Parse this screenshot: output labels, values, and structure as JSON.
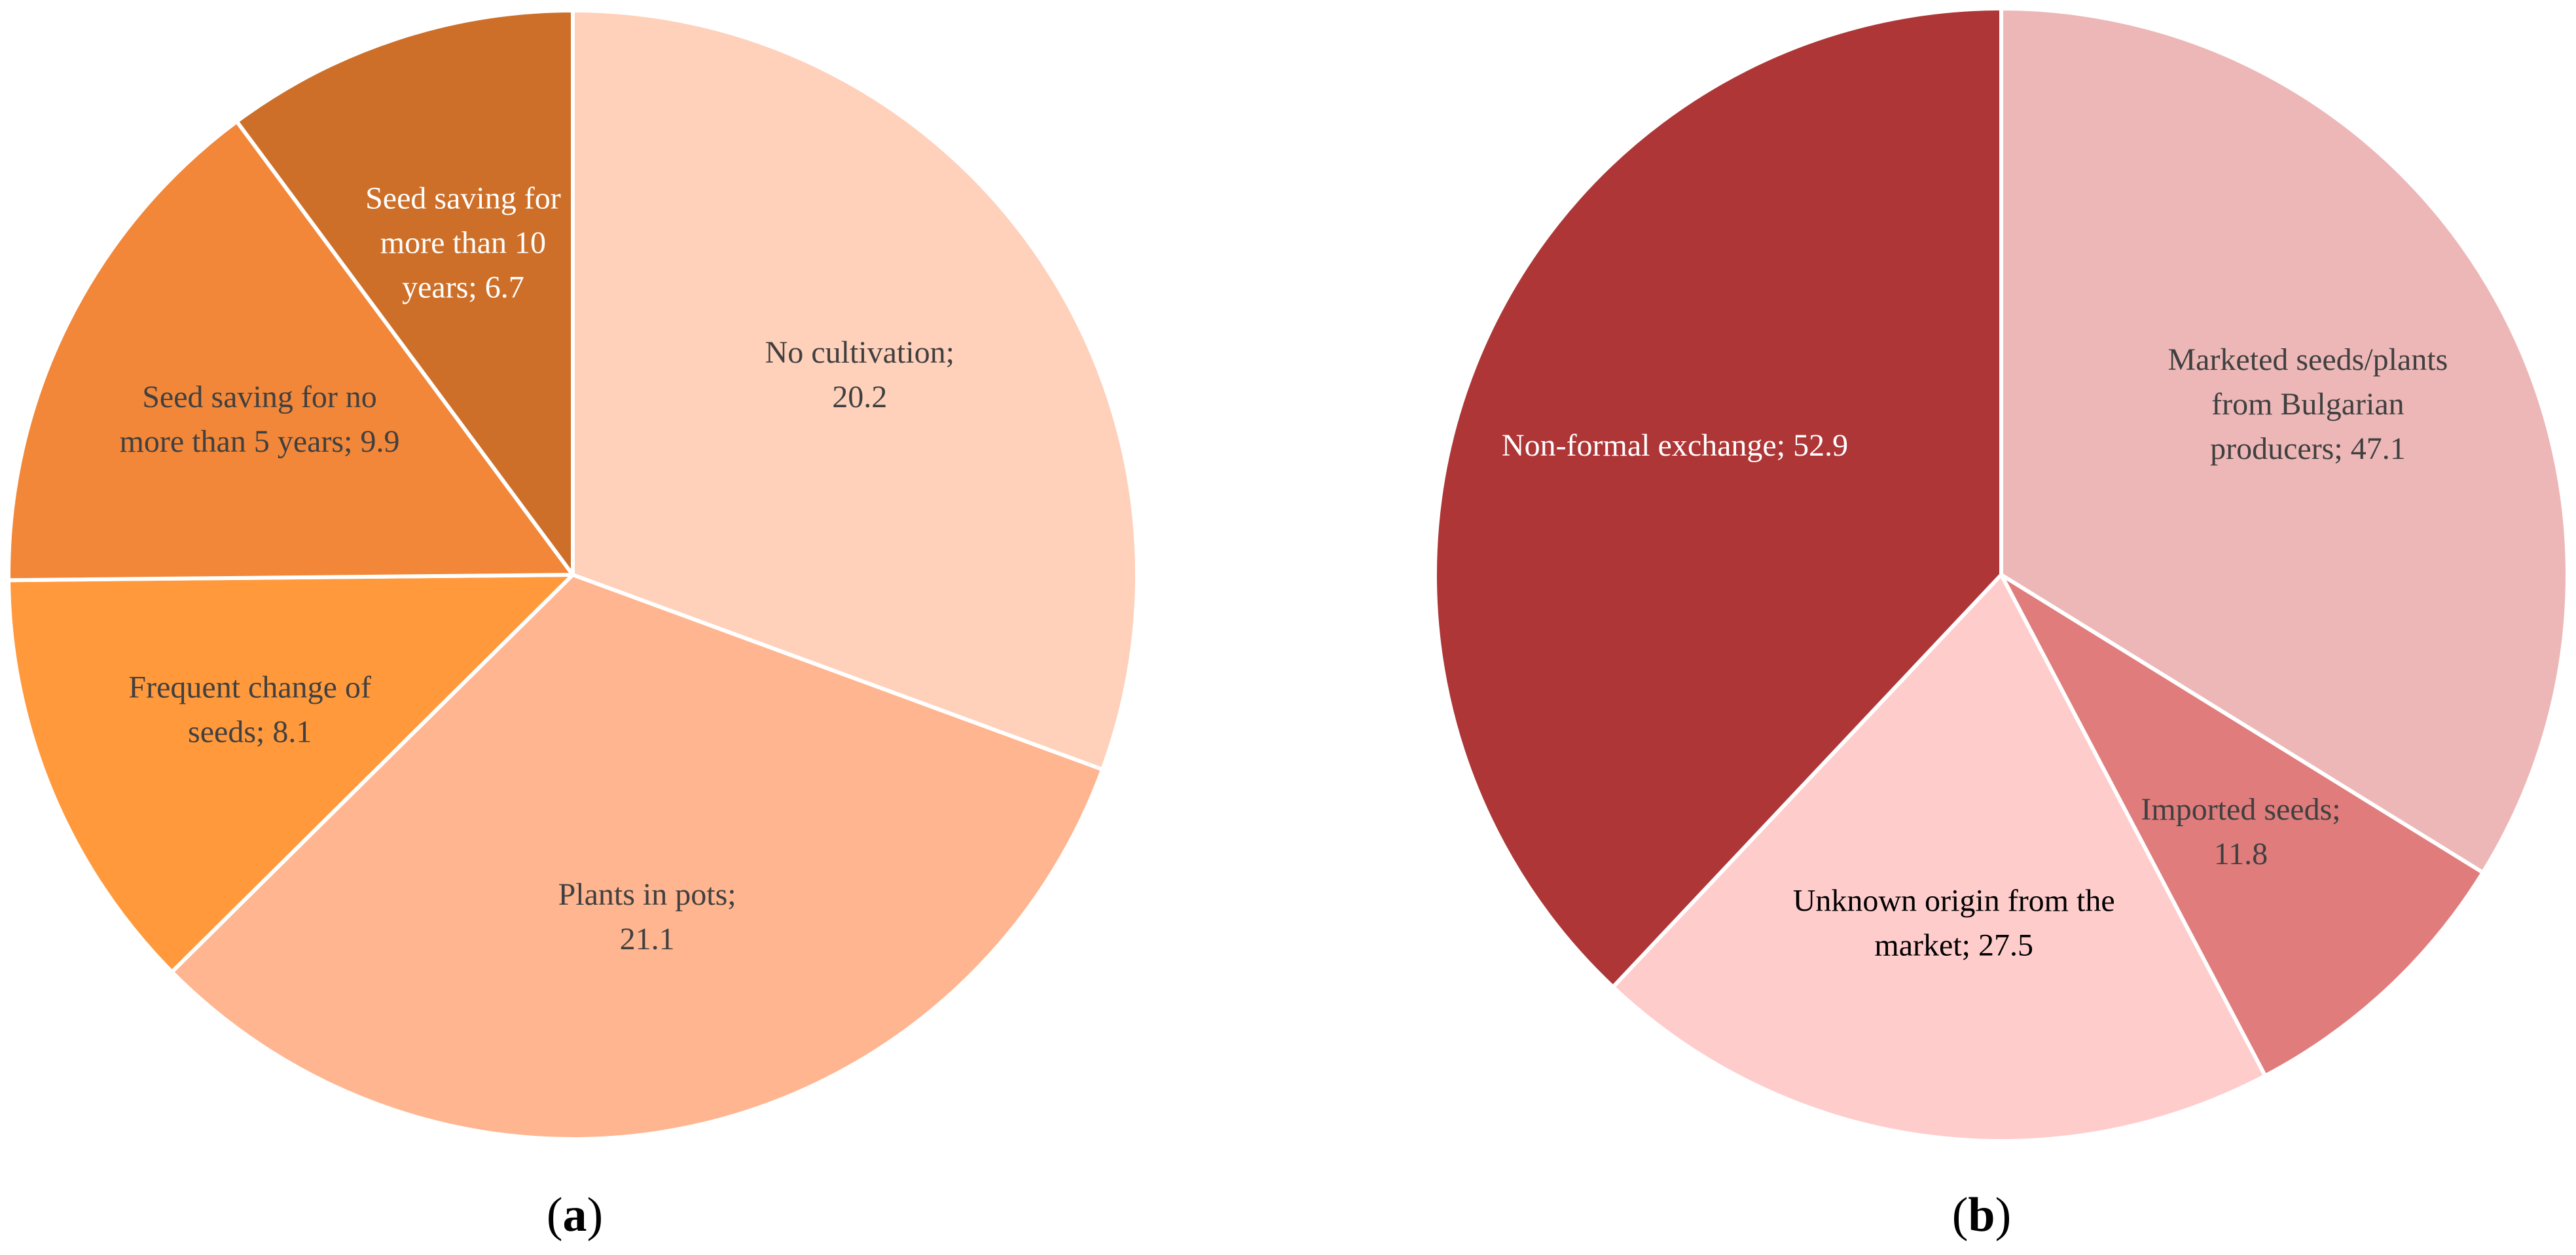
{
  "chart_data": [
    {
      "type": "pie",
      "panel_label": "a",
      "slices": [
        {
          "label_lines": [
            "No cultivation;",
            "20.2"
          ],
          "value": 20.2,
          "color": "#FFD0BA",
          "text_color": "#404040"
        },
        {
          "label_lines": [
            "Plants in pots;",
            "21.1"
          ],
          "value": 21.1,
          "color": "#FFB58F",
          "text_color": "#404040"
        },
        {
          "label_lines": [
            "Frequent change of",
            "seeds; 8.1"
          ],
          "value": 8.1,
          "color": "#FF993C",
          "text_color": "#404040"
        },
        {
          "label_lines": [
            "Seed saving for no",
            "more than 5 years; 9.9"
          ],
          "value": 9.9,
          "color": "#F28739",
          "text_color": "#404040"
        },
        {
          "label_lines": [
            "Seed saving for",
            "more than 10",
            "years; 6.7"
          ],
          "value": 6.7,
          "color": "#CD6F28",
          "text_color": "#FFFFFF"
        }
      ]
    },
    {
      "type": "pie",
      "panel_label": "b",
      "slices": [
        {
          "label_lines": [
            "Marketed seeds/plants",
            "from Bulgarian",
            "producers; 47.1"
          ],
          "value": 47.1,
          "color": "#EDB7B7",
          "text_color": "#404040"
        },
        {
          "label_lines": [
            "Imported seeds;",
            "11.8"
          ],
          "value": 11.8,
          "color": "#E07C7C",
          "text_color": "#404040"
        },
        {
          "label_lines": [
            "Unknown origin from the",
            "market; 27.5"
          ],
          "value": 27.5,
          "color": "#FFCCCC",
          "text_color": "#000000"
        },
        {
          "label_lines": [
            "Non-formal exchange; 52.9"
          ],
          "value": 52.9,
          "color": "#AE3637",
          "text_color": "#FFFFFF"
        }
      ]
    }
  ]
}
